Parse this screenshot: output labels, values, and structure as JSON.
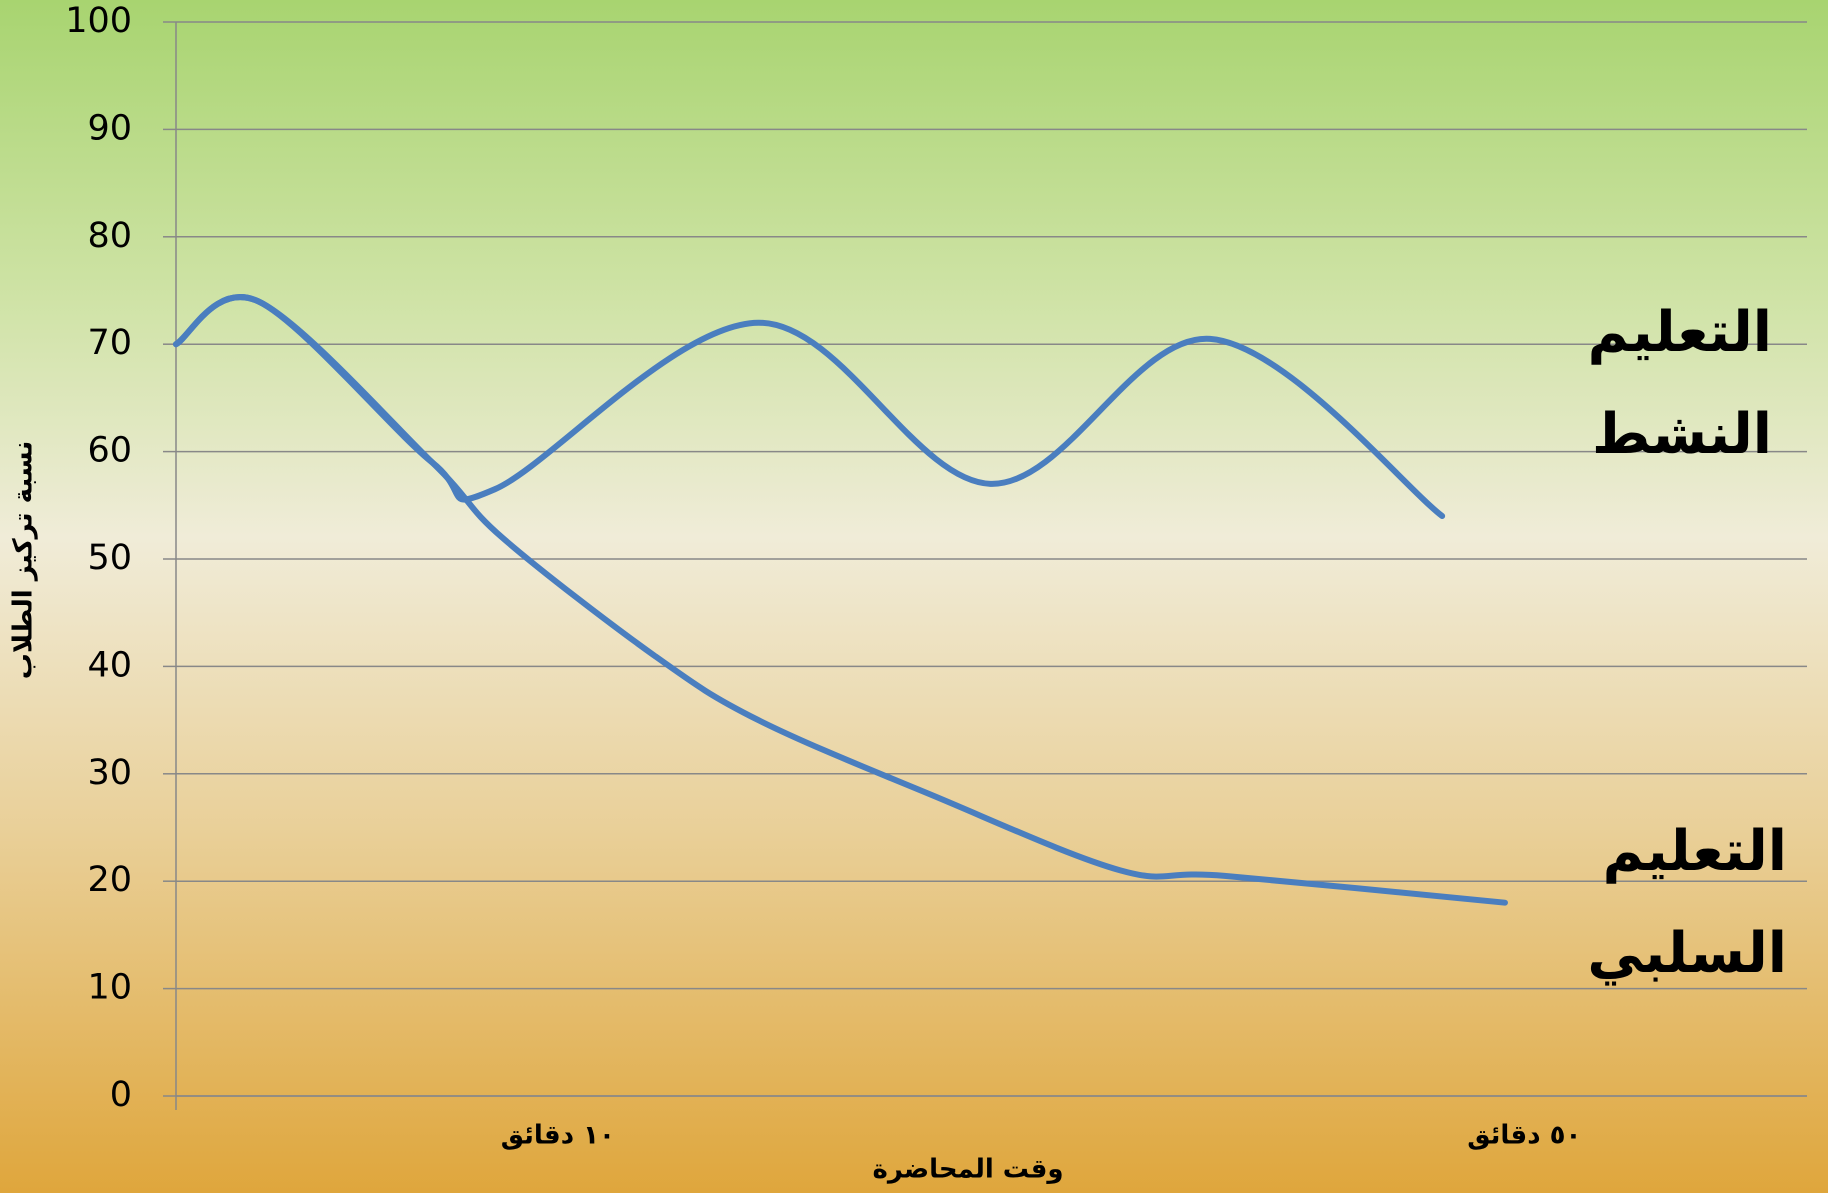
{
  "chart_data": {
    "type": "line",
    "xlabel": "وقت المحاضرة",
    "ylabel": "نسبة تركيز الطلاب",
    "xlim": [
      -5.8,
      61.7
    ],
    "xticks": [
      {
        "value": 10,
        "label": "١٠ دقائق"
      },
      {
        "value": 50,
        "label": "٥٠ دقائق"
      }
    ],
    "ylim": [
      0,
      100
    ],
    "yticks": [
      0,
      10,
      20,
      30,
      40,
      50,
      60,
      70,
      80,
      90,
      100
    ],
    "grid": true,
    "series": [
      {
        "name": "التعليم النشط",
        "color": "#4a7ebf",
        "x": [
          -5.8,
          -2.4,
          4.8,
          7.4,
          18.3,
          27.9,
          37.0,
          46.6
        ],
        "values": [
          70,
          74,
          59,
          56.5,
          72,
          57,
          70.5,
          54
        ]
      },
      {
        "name": "التعليم السلبي",
        "color": "#4a7ebf",
        "x": [
          -5.8,
          -2.4,
          4.8,
          7.7,
          14.0,
          18.3,
          25.5,
          33.3,
          37.6,
          49.2
        ],
        "values": [
          70,
          74,
          59,
          52,
          41,
          35,
          28,
          21,
          20.5,
          18
        ]
      }
    ]
  }
}
